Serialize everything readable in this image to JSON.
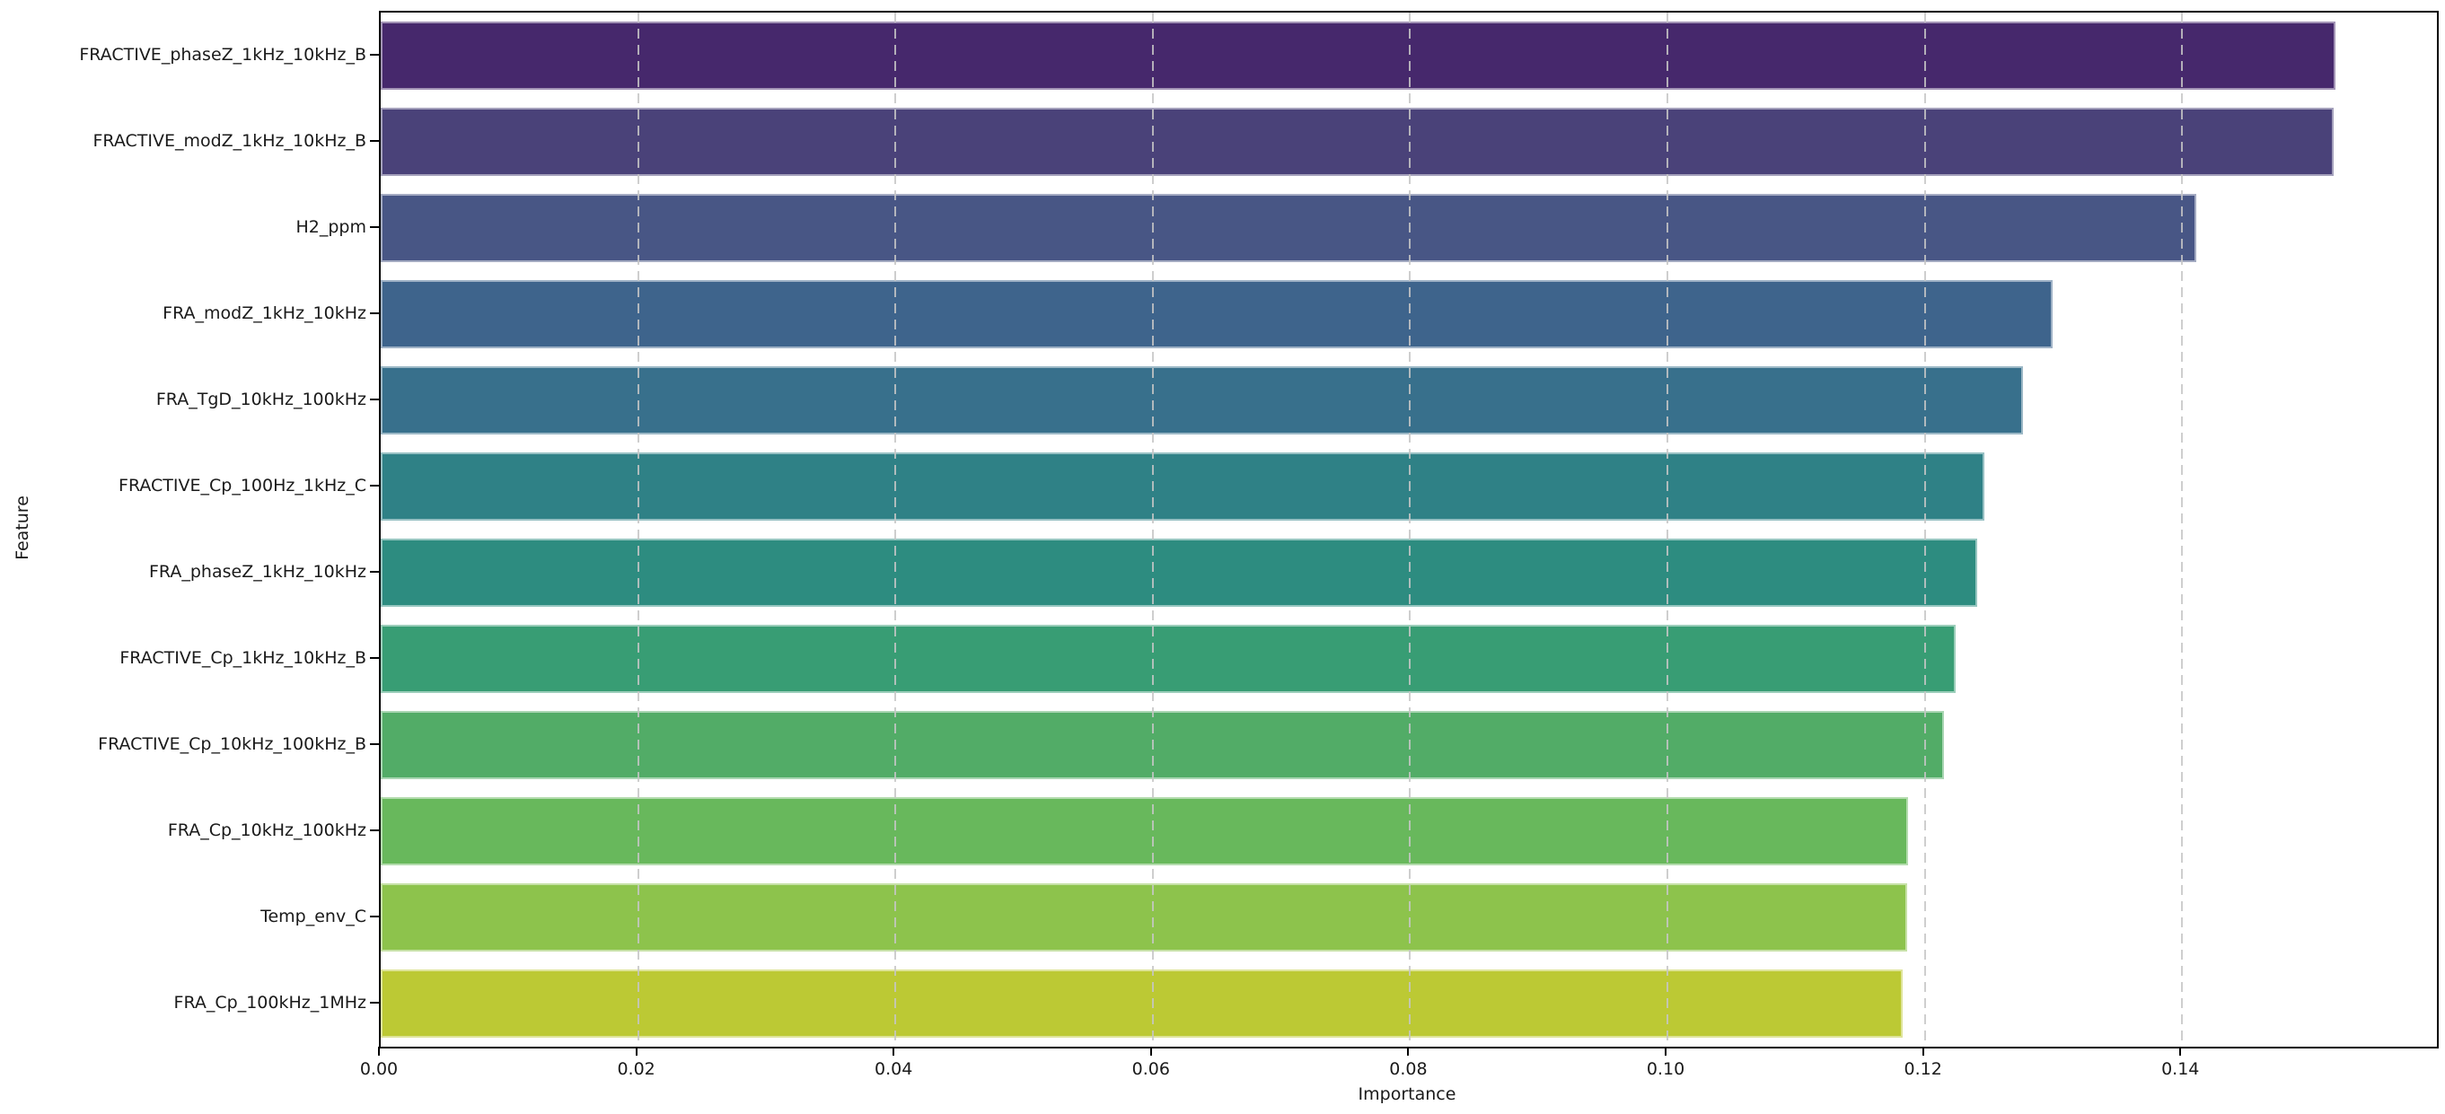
{
  "figure": {
    "background_color": "#ffffff",
    "spine_color": "#000000",
    "text_color": "#1a1a1a",
    "gridline_color": "#c6c6c6"
  },
  "chart_data": {
    "type": "bar",
    "orientation": "horizontal",
    "xlabel": "Importance",
    "ylabel": "Feature",
    "categories": [
      "FRACTIVE_phaseZ_1kHz_10kHz_B",
      "FRACTIVE_modZ_1kHz_10kHz_B",
      "H2_ppm",
      "FRA_modZ_1kHz_10kHz",
      "FRA_TgD_10kHz_100kHz",
      "FRACTIVE_Cp_100Hz_1kHz_C",
      "FRA_phaseZ_1kHz_10kHz",
      "FRACTIVE_Cp_1kHz_10kHz_B",
      "FRACTIVE_Cp_10kHz_100kHz_B",
      "FRA_Cp_10kHz_100kHz",
      "Temp_env_C",
      "FRA_Cp_100kHz_1MHz"
    ],
    "values": [
      0.1519,
      0.1518,
      0.1411,
      0.1299,
      0.1276,
      0.1246,
      0.1241,
      0.1224,
      0.1215,
      0.1187,
      0.1186,
      0.1183
    ],
    "bar_colors": [
      "#46286c",
      "#4a4279",
      "#485685",
      "#3e648c",
      "#38708c",
      "#2f8186",
      "#2d8c80",
      "#389d74",
      "#52ac67",
      "#68b85c",
      "#8dc34c",
      "#bcc934"
    ],
    "colormap": "viridis",
    "xlim": [
      0,
      0.1598
    ],
    "xticks": [
      0.0,
      0.02,
      0.04,
      0.06,
      0.08,
      0.1,
      0.12,
      0.14
    ],
    "xtick_labels": [
      "0.00",
      "0.02",
      "0.04",
      "0.06",
      "0.08",
      "0.10",
      "0.12",
      "0.14"
    ],
    "grid": {
      "axis": "x",
      "linestyle": "dashed",
      "on": true
    },
    "legend": "none"
  }
}
